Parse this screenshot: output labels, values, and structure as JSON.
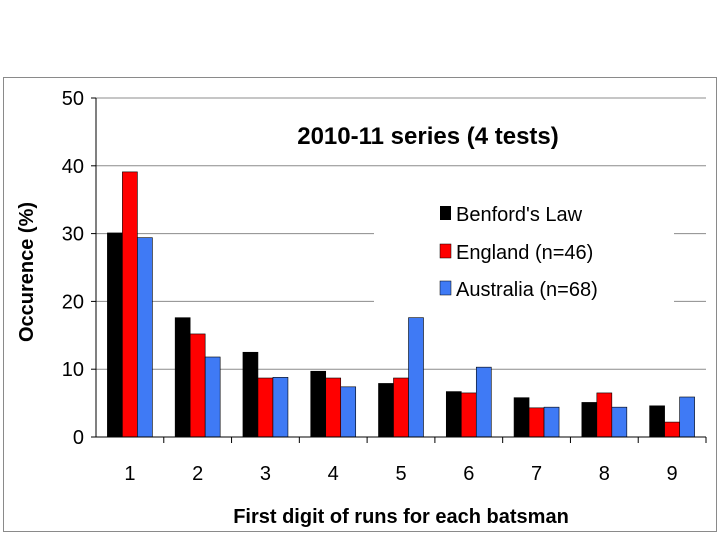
{
  "chart_data": {
    "type": "bar",
    "title": "2010-11 series (4 tests)",
    "xlabel": "First digit of runs for each batsman",
    "ylabel": "Occurence (%)",
    "ylim": [
      0,
      50
    ],
    "yticks": [
      "0",
      "10",
      "20",
      "30",
      "40",
      "50"
    ],
    "categories": [
      "1",
      "2",
      "3",
      "4",
      "5",
      "6",
      "7",
      "8",
      "9"
    ],
    "grid": "horizontal",
    "legend_position": "center-right",
    "series": [
      {
        "name": "Benford's Law",
        "color": "#000000",
        "values": [
          30.1,
          17.6,
          12.5,
          9.7,
          7.9,
          6.7,
          5.8,
          5.1,
          4.6
        ]
      },
      {
        "name": "England (n=46)",
        "color": "#ff0000",
        "values": [
          39.1,
          15.2,
          8.7,
          8.7,
          8.7,
          6.5,
          4.3,
          6.5,
          2.2
        ]
      },
      {
        "name": "Australia (n=68)",
        "color": "#3f7af5",
        "values": [
          29.4,
          11.8,
          8.8,
          7.4,
          17.6,
          10.3,
          4.4,
          4.4,
          5.9
        ]
      }
    ]
  }
}
